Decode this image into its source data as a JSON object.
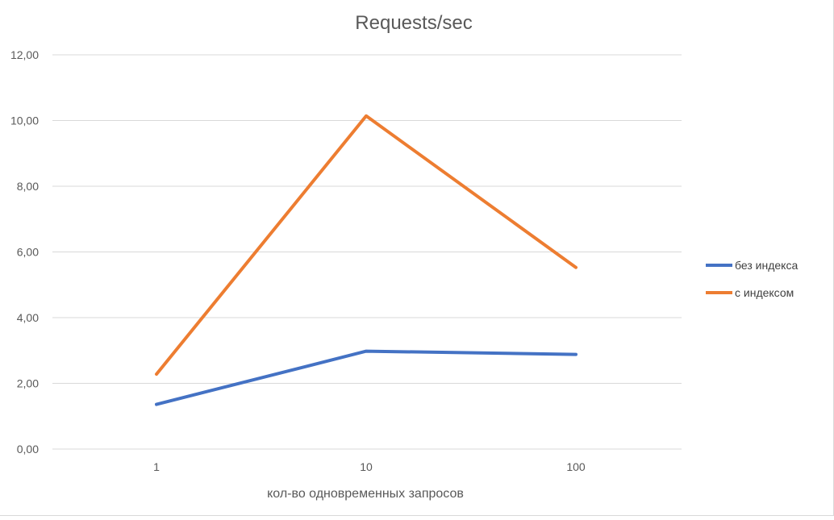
{
  "chart_data": {
    "type": "line",
    "title": "Requests/sec",
    "xlabel": "кол-во одновременных запросов",
    "ylabel": "",
    "categories": [
      "1",
      "10",
      "100"
    ],
    "ylim": [
      0,
      12
    ],
    "y_ticks": [
      "0,00",
      "2,00",
      "4,00",
      "6,00",
      "8,00",
      "10,00",
      "12,00"
    ],
    "grid": true,
    "legend_position": "right",
    "series": [
      {
        "name": "без индекса",
        "color": "#4472c4",
        "values": [
          1.36,
          2.98,
          2.88
        ]
      },
      {
        "name": "с индексом",
        "color": "#ed7d31",
        "values": [
          2.28,
          10.14,
          5.53
        ]
      }
    ]
  }
}
